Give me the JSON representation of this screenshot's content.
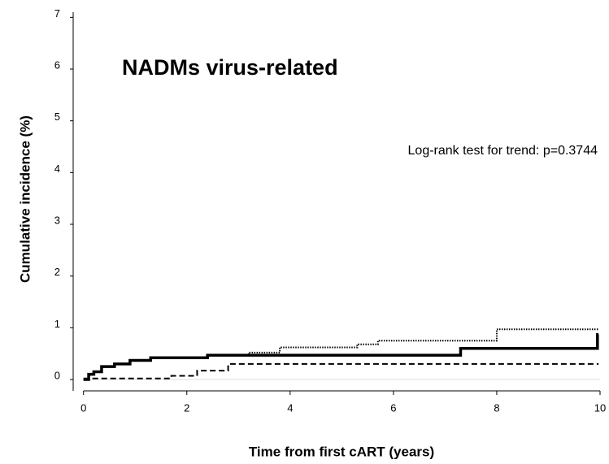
{
  "chart_data": {
    "type": "step",
    "title": "NADMs virus-related",
    "annotation": "Log-rank test for trend: p=0.3744",
    "x_label": "Time from first cART (years)",
    "y_label": "Cumulative incidence (%)",
    "xlim": [
      -0.2,
      10
    ],
    "xticks": [
      0,
      2,
      4,
      6,
      8,
      10
    ],
    "ylim": [
      -0.22,
      7.1
    ],
    "yticks": [
      0,
      1,
      2,
      3,
      4,
      5,
      6,
      7
    ],
    "zero_line": true,
    "series": [
      {
        "color": "#000000",
        "dash": "solid",
        "x": [
          0,
          0.1,
          0.2,
          0.35,
          0.6,
          0.9,
          1.3,
          2.4,
          7.3,
          9.95,
          9.97
        ],
        "values": [
          0,
          0.1,
          0.15,
          0.25,
          0.3,
          0.37,
          0.42,
          0.47,
          0.6,
          0.87,
          0.87
        ]
      },
      {
        "color": "#000000",
        "dash": "dotted",
        "x": [
          0,
          0.1,
          0.2,
          0.35,
          0.6,
          0.9,
          1.3,
          2.4,
          3.2,
          3.8,
          5.3,
          5.7,
          8.0,
          9.97
        ],
        "values": [
          0,
          0.1,
          0.15,
          0.25,
          0.3,
          0.37,
          0.42,
          0.47,
          0.52,
          0.62,
          0.68,
          0.75,
          0.97,
          0.97
        ]
      },
      {
        "color": "#000000",
        "dash": "dashed",
        "x": [
          0,
          1.7,
          2.2,
          2.8,
          9.97
        ],
        "values": [
          0.02,
          0.07,
          0.17,
          0.3,
          0.3
        ]
      }
    ]
  }
}
